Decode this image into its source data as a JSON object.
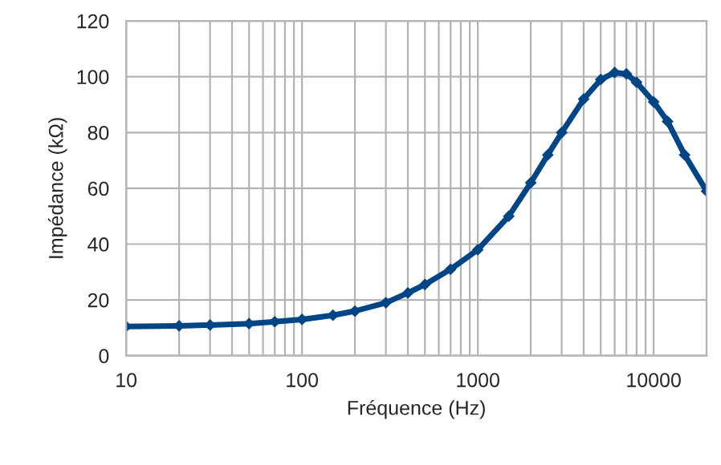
{
  "chart_data": {
    "type": "line",
    "xlabel": "Fréquence (Hz)",
    "ylabel": "Impédance (kΩ)",
    "log": "x",
    "x": [
      10,
      20,
      30,
      50,
      70,
      100,
      150,
      200,
      300,
      400,
      500,
      700,
      1000,
      1500,
      2000,
      2500,
      3000,
      4000,
      5000,
      6000,
      7000,
      8000,
      10000,
      12000,
      15000,
      20000
    ],
    "series": [
      {
        "color": "#004586",
        "values": [
          10.5,
          10.7,
          11,
          11.5,
          12.2,
          13,
          14.5,
          16,
          19,
          22.5,
          25.5,
          31,
          38,
          50,
          62,
          72,
          80,
          92,
          99,
          101.5,
          101,
          98,
          91,
          84,
          72,
          59
        ]
      }
    ],
    "xlim": [
      10,
      20000
    ],
    "xticks": [
      10,
      100,
      1000,
      10000
    ],
    "ylim": [
      0,
      120
    ],
    "yticks": [
      0,
      20,
      40,
      60,
      80,
      100,
      120
    ],
    "grid": true,
    "marker": "diamond",
    "line_style": "solid"
  }
}
